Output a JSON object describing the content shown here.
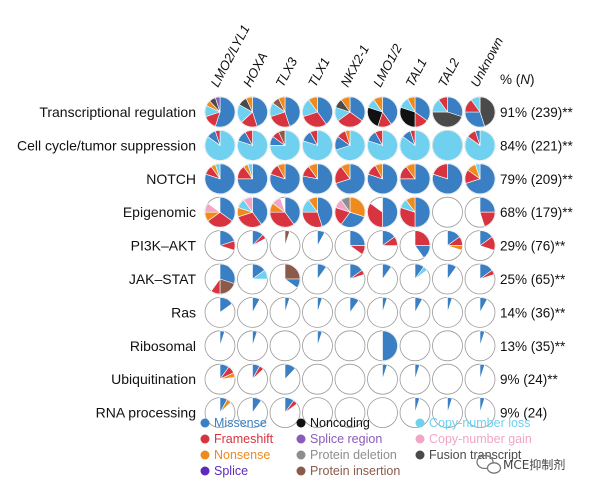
{
  "chart_data": {
    "type": "pie",
    "layout": "grid of pie charts",
    "columns": [
      "LMO2/LYL1",
      "HOXA",
      "TLX3",
      "TLX1",
      "NKX2-1",
      "LMO1/2",
      "TAL1",
      "TAL2",
      "Unknown"
    ],
    "header_right": "% (N)",
    "header_right_parts": [
      "% (",
      "N",
      ")"
    ],
    "rows": [
      {
        "label": "Transcriptional regulation",
        "percent_label": "91% (239)**"
      },
      {
        "label": "Cell cycle/tumor suppression",
        "percent_label": "84% (221)**"
      },
      {
        "label": "NOTCH",
        "percent_label": "79% (209)**"
      },
      {
        "label": "Epigenomic",
        "percent_label": "68% (179)**"
      },
      {
        "label": "PI3K–AKT",
        "percent_label": "29% (76)**"
      },
      {
        "label": "JAK–STAT",
        "percent_label": "25% (65)**"
      },
      {
        "label": "Ras",
        "percent_label": "14% (36)**"
      },
      {
        "label": "Ribosomal",
        "percent_label": "13% (35)**"
      },
      {
        "label": "Ubiquitination",
        "percent_label": "9% (24)**"
      },
      {
        "label": "RNA processing",
        "percent_label": "9% (24)"
      }
    ],
    "legend": [
      {
        "key": "missense",
        "name": "Missense",
        "color": "#3a7fc4"
      },
      {
        "key": "frameshift",
        "name": "Frameshift",
        "color": "#d8343f"
      },
      {
        "key": "nonsense",
        "name": "Nonsense",
        "color": "#ef8a1c"
      },
      {
        "key": "splice",
        "name": "Splice",
        "color": "#5b2bbd"
      },
      {
        "key": "noncoding",
        "name": "Noncoding",
        "color": "#111111"
      },
      {
        "key": "splice_region",
        "name": "Splice region",
        "color": "#8a5bb8"
      },
      {
        "key": "protein_deletion",
        "name": "Protein deletion",
        "color": "#8e8e8e"
      },
      {
        "key": "protein_insertion",
        "name": "Protein insertion",
        "color": "#8b5a4a"
      },
      {
        "key": "cn_loss",
        "name": "Copy-number loss",
        "color": "#6fd0ef"
      },
      {
        "key": "cn_gain",
        "name": "Copy-number gain",
        "color": "#f2a6c6"
      },
      {
        "key": "fusion",
        "name": "Fusion transcript",
        "color": "#4a4a4a"
      }
    ],
    "pies": [
      [
        [
          {
            "k": "missense",
            "v": 0.55
          },
          {
            "k": "frameshift",
            "v": 0.15
          },
          {
            "k": "cn_loss",
            "v": 0.12
          },
          {
            "k": "nonsense",
            "v": 0.06
          },
          {
            "k": "fusion",
            "v": 0.07
          },
          {
            "k": "splice_region",
            "v": 0.05
          }
        ],
        [
          {
            "k": "missense",
            "v": 0.45
          },
          {
            "k": "frameshift",
            "v": 0.18
          },
          {
            "k": "cn_loss",
            "v": 0.2
          },
          {
            "k": "fusion",
            "v": 0.1
          },
          {
            "k": "nonsense",
            "v": 0.07
          }
        ],
        [
          {
            "k": "missense",
            "v": 0.45
          },
          {
            "k": "frameshift",
            "v": 0.25
          },
          {
            "k": "cn_loss",
            "v": 0.15
          },
          {
            "k": "protein_insertion",
            "v": 0.08
          },
          {
            "k": "nonsense",
            "v": 0.07
          }
        ],
        [
          {
            "k": "missense",
            "v": 0.4
          },
          {
            "k": "frameshift",
            "v": 0.3
          },
          {
            "k": "cn_loss",
            "v": 0.2
          },
          {
            "k": "nonsense",
            "v": 0.1
          }
        ],
        [
          {
            "k": "missense",
            "v": 0.35
          },
          {
            "k": "frameshift",
            "v": 0.3
          },
          {
            "k": "cn_loss",
            "v": 0.15
          },
          {
            "k": "fusion",
            "v": 0.1
          },
          {
            "k": "nonsense",
            "v": 0.1
          }
        ],
        [
          {
            "k": "missense",
            "v": 0.4
          },
          {
            "k": "frameshift",
            "v": 0.15
          },
          {
            "k": "noncoding",
            "v": 0.25
          },
          {
            "k": "cn_loss",
            "v": 0.1
          },
          {
            "k": "nonsense",
            "v": 0.1
          }
        ],
        [
          {
            "k": "missense",
            "v": 0.35
          },
          {
            "k": "frameshift",
            "v": 0.15
          },
          {
            "k": "noncoding",
            "v": 0.3
          },
          {
            "k": "cn_loss",
            "v": 0.12
          },
          {
            "k": "nonsense",
            "v": 0.08
          }
        ],
        [
          {
            "k": "missense",
            "v": 0.3
          },
          {
            "k": "fusion",
            "v": 0.45
          },
          {
            "k": "cn_loss",
            "v": 0.15
          },
          {
            "k": "frameshift",
            "v": 0.1
          }
        ],
        [
          {
            "k": "fusion",
            "v": 0.45
          },
          {
            "k": "missense",
            "v": 0.3
          },
          {
            "k": "frameshift",
            "v": 0.15
          },
          {
            "k": "cn_loss",
            "v": 0.1
          }
        ]
      ],
      [
        [
          {
            "k": "cn_loss",
            "v": 0.85
          },
          {
            "k": "missense",
            "v": 0.1
          },
          {
            "k": "frameshift",
            "v": 0.05
          }
        ],
        [
          {
            "k": "cn_loss",
            "v": 0.8
          },
          {
            "k": "missense",
            "v": 0.12
          },
          {
            "k": "frameshift",
            "v": 0.08
          }
        ],
        [
          {
            "k": "cn_loss",
            "v": 0.75
          },
          {
            "k": "missense",
            "v": 0.1
          },
          {
            "k": "frameshift",
            "v": 0.08
          },
          {
            "k": "protein_insertion",
            "v": 0.07
          }
        ],
        [
          {
            "k": "cn_loss",
            "v": 0.8
          },
          {
            "k": "missense",
            "v": 0.12
          },
          {
            "k": "frameshift",
            "v": 0.08
          }
        ],
        [
          {
            "k": "cn_loss",
            "v": 0.7
          },
          {
            "k": "missense",
            "v": 0.15
          },
          {
            "k": "frameshift",
            "v": 0.1
          },
          {
            "k": "nonsense",
            "v": 0.05
          }
        ],
        [
          {
            "k": "cn_loss",
            "v": 0.8
          },
          {
            "k": "missense",
            "v": 0.12
          },
          {
            "k": "frameshift",
            "v": 0.08
          }
        ],
        [
          {
            "k": "cn_loss",
            "v": 0.85
          },
          {
            "k": "missense",
            "v": 0.1
          },
          {
            "k": "frameshift",
            "v": 0.05
          }
        ],
        [
          {
            "k": "cn_loss",
            "v": 1.0
          }
        ],
        [
          {
            "k": "cn_loss",
            "v": 0.85
          },
          {
            "k": "frameshift",
            "v": 0.1
          },
          {
            "k": "missense",
            "v": 0.05
          }
        ]
      ],
      [
        [
          {
            "k": "missense",
            "v": 0.8
          },
          {
            "k": "frameshift",
            "v": 0.1
          },
          {
            "k": "nonsense",
            "v": 0.05
          },
          {
            "k": "cn_loss",
            "v": 0.05
          }
        ],
        [
          {
            "k": "missense",
            "v": 0.75
          },
          {
            "k": "frameshift",
            "v": 0.15
          },
          {
            "k": "nonsense",
            "v": 0.05
          },
          {
            "k": "cn_loss",
            "v": 0.05
          }
        ],
        [
          {
            "k": "missense",
            "v": 0.8
          },
          {
            "k": "frameshift",
            "v": 0.12
          },
          {
            "k": "nonsense",
            "v": 0.08
          }
        ],
        [
          {
            "k": "missense",
            "v": 0.78
          },
          {
            "k": "frameshift",
            "v": 0.12
          },
          {
            "k": "nonsense",
            "v": 0.1
          }
        ],
        [
          {
            "k": "missense",
            "v": 0.7
          },
          {
            "k": "frameshift",
            "v": 0.2
          },
          {
            "k": "nonsense",
            "v": 0.1
          }
        ],
        [
          {
            "k": "missense",
            "v": 0.8
          },
          {
            "k": "frameshift",
            "v": 0.12
          },
          {
            "k": "nonsense",
            "v": 0.08
          }
        ],
        [
          {
            "k": "missense",
            "v": 0.75
          },
          {
            "k": "frameshift",
            "v": 0.15
          },
          {
            "k": "nonsense",
            "v": 0.1
          }
        ],
        [
          {
            "k": "missense",
            "v": 0.8
          },
          {
            "k": "frameshift",
            "v": 0.2
          }
        ],
        [
          {
            "k": "missense",
            "v": 0.7
          },
          {
            "k": "frameshift",
            "v": 0.15
          },
          {
            "k": "nonsense",
            "v": 0.1
          },
          {
            "k": "cn_loss",
            "v": 0.05
          }
        ]
      ],
      [
        [
          {
            "k": "missense",
            "v": 0.35
          },
          {
            "k": "frameshift",
            "v": 0.3
          },
          {
            "k": "nonsense",
            "v": 0.1
          },
          {
            "k": "cn_gain",
            "v": 0.1
          }
        ],
        [
          {
            "k": "missense",
            "v": 0.4
          },
          {
            "k": "frameshift",
            "v": 0.3
          },
          {
            "k": "nonsense",
            "v": 0.1
          },
          {
            "k": "cn_loss",
            "v": 0.1
          },
          {
            "k": "cn_gain",
            "v": 0.1
          }
        ],
        [
          {
            "k": "missense",
            "v": 0.4
          },
          {
            "k": "frameshift",
            "v": 0.35
          },
          {
            "k": "nonsense",
            "v": 0.1
          },
          {
            "k": "cn_gain",
            "v": 0.1
          }
        ],
        [
          {
            "k": "missense",
            "v": 0.45
          },
          {
            "k": "frameshift",
            "v": 0.3
          },
          {
            "k": "cn_loss",
            "v": 0.15
          },
          {
            "k": "nonsense",
            "v": 0.1
          }
        ],
        [
          {
            "k": "nonsense",
            "v": 0.3
          },
          {
            "k": "missense",
            "v": 0.3
          },
          {
            "k": "frameshift",
            "v": 0.2
          },
          {
            "k": "cn_gain",
            "v": 0.1
          },
          {
            "k": "protein_deletion",
            "v": 0.1
          }
        ],
        [
          {
            "k": "missense",
            "v": 0.5
          },
          {
            "k": "frameshift",
            "v": 0.35
          }
        ],
        [
          {
            "k": "missense",
            "v": 0.5
          },
          {
            "k": "frameshift",
            "v": 0.3
          },
          {
            "k": "cn_loss",
            "v": 0.1
          },
          {
            "k": "nonsense",
            "v": 0.1
          }
        ],
        [],
        [
          {
            "k": "missense",
            "v": 0.25
          },
          {
            "k": "frameshift",
            "v": 0.2
          }
        ]
      ],
      [
        [
          {
            "k": "missense",
            "v": 0.2
          },
          {
            "k": "frameshift",
            "v": 0.1
          }
        ],
        [
          {
            "k": "missense",
            "v": 0.12
          },
          {
            "k": "frameshift",
            "v": 0.05
          }
        ],
        [
          {
            "k": "protein_insertion",
            "v": 0.05
          }
        ],
        [
          {
            "k": "missense",
            "v": 0.08
          }
        ],
        [
          {
            "k": "missense",
            "v": 0.25
          },
          {
            "k": "frameshift",
            "v": 0.1
          }
        ],
        [
          {
            "k": "missense",
            "v": 0.15
          },
          {
            "k": "frameshift",
            "v": 0.1
          }
        ],
        [
          {
            "k": "frameshift",
            "v": 0.25
          },
          {
            "k": "missense",
            "v": 0.15
          }
        ],
        [
          {
            "k": "missense",
            "v": 0.15
          },
          {
            "k": "frameshift",
            "v": 0.1
          },
          {
            "k": "nonsense",
            "v": 0.05
          }
        ],
        [
          {
            "k": "missense",
            "v": 0.15
          },
          {
            "k": "frameshift",
            "v": 0.15
          }
        ]
      ],
      [
        [
          {
            "k": "missense",
            "v": 0.3
          },
          {
            "k": "protein_insertion",
            "v": 0.2
          },
          {
            "k": "frameshift",
            "v": 0.1
          }
        ],
        [
          {
            "k": "missense",
            "v": 0.15
          },
          {
            "k": "cn_loss",
            "v": 0.1
          }
        ],
        [
          {
            "k": "protein_insertion",
            "v": 0.25
          },
          {
            "k": "missense",
            "v": 0.1
          }
        ],
        [
          {
            "k": "missense",
            "v": 0.1
          }
        ],
        [
          {
            "k": "missense",
            "v": 0.15
          },
          {
            "k": "frameshift",
            "v": 0.05
          }
        ],
        [
          {
            "k": "missense",
            "v": 0.1
          }
        ],
        [
          {
            "k": "missense",
            "v": 0.1
          },
          {
            "k": "cn_loss",
            "v": 0.05
          }
        ],
        [
          {
            "k": "missense",
            "v": 0.1
          }
        ],
        [
          {
            "k": "missense",
            "v": 0.15
          },
          {
            "k": "frameshift",
            "v": 0.05
          }
        ]
      ],
      [
        [
          {
            "k": "missense",
            "v": 0.15
          }
        ],
        [
          {
            "k": "missense",
            "v": 0.08
          }
        ],
        [
          {
            "k": "missense",
            "v": 0.05
          }
        ],
        [
          {
            "k": "missense",
            "v": 0.05
          }
        ],
        [
          {
            "k": "missense",
            "v": 0.1
          }
        ],
        [
          {
            "k": "missense",
            "v": 0.05
          }
        ],
        [
          {
            "k": "missense",
            "v": 0.08
          }
        ],
        [
          {
            "k": "missense",
            "v": 0.05
          }
        ],
        [
          {
            "k": "missense",
            "v": 0.08
          }
        ]
      ],
      [
        [
          {
            "k": "missense",
            "v": 0.05
          }
        ],
        [
          {
            "k": "missense",
            "v": 0.05
          }
        ],
        [],
        [
          {
            "k": "missense",
            "v": 0.05
          }
        ],
        [],
        [
          {
            "k": "missense",
            "v": 0.5
          }
        ],
        [],
        [],
        [
          {
            "k": "missense",
            "v": 0.05
          }
        ]
      ],
      [
        [
          {
            "k": "missense",
            "v": 0.1
          },
          {
            "k": "frameshift",
            "v": 0.08
          },
          {
            "k": "nonsense",
            "v": 0.05
          }
        ],
        [
          {
            "k": "missense",
            "v": 0.08
          },
          {
            "k": "frameshift",
            "v": 0.05
          }
        ],
        [
          {
            "k": "missense",
            "v": 0.12
          }
        ],
        [],
        [],
        [
          {
            "k": "missense",
            "v": 0.05
          }
        ],
        [
          {
            "k": "missense",
            "v": 0.05
          }
        ],
        [],
        [
          {
            "k": "missense",
            "v": 0.05
          }
        ]
      ],
      [
        [
          {
            "k": "missense",
            "v": 0.08
          },
          {
            "k": "nonsense",
            "v": 0.05
          }
        ],
        [
          {
            "k": "missense",
            "v": 0.1
          }
        ],
        [
          {
            "k": "missense",
            "v": 0.1
          },
          {
            "k": "frameshift",
            "v": 0.05
          }
        ],
        [],
        [],
        [],
        [
          {
            "k": "missense",
            "v": 0.05
          }
        ],
        [
          {
            "k": "missense",
            "v": 0.05
          }
        ],
        [
          {
            "k": "missense",
            "v": 0.05
          }
        ]
      ]
    ]
  },
  "watermark": {
    "text": "MCE抑制剂",
    "icon": "wechat-icon"
  }
}
